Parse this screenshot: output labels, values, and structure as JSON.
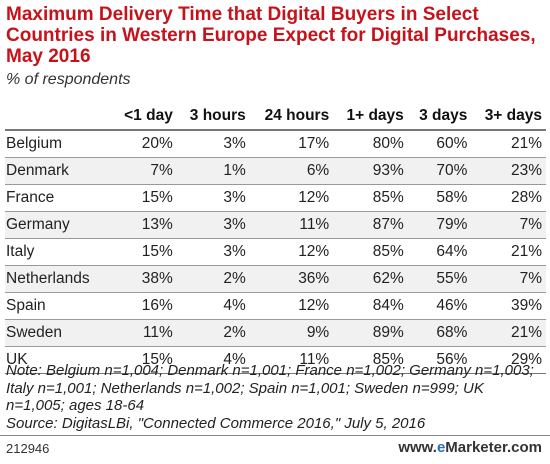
{
  "chart_data": {
    "type": "table",
    "title": "Maximum Delivery Time that Digital Buyers in Select Countries in Western Europe Expect for Digital Purchases, May 2016",
    "subtitle": "% of respondents",
    "columns": [
      "",
      "<1 day",
      "3 hours",
      "24 hours",
      "1+ days",
      "3 days",
      "3+ days"
    ],
    "rows": [
      {
        "label": "Belgium",
        "values": [
          "20%",
          "3%",
          "17%",
          "80%",
          "60%",
          "21%"
        ]
      },
      {
        "label": "Denmark",
        "values": [
          "7%",
          "1%",
          "6%",
          "93%",
          "70%",
          "23%"
        ]
      },
      {
        "label": "France",
        "values": [
          "15%",
          "3%",
          "12%",
          "85%",
          "58%",
          "28%"
        ]
      },
      {
        "label": "Germany",
        "values": [
          "13%",
          "3%",
          "11%",
          "87%",
          "79%",
          "7%"
        ]
      },
      {
        "label": "Italy",
        "values": [
          "15%",
          "3%",
          "12%",
          "85%",
          "64%",
          "21%"
        ]
      },
      {
        "label": "Netherlands",
        "values": [
          "38%",
          "2%",
          "36%",
          "62%",
          "55%",
          "7%"
        ]
      },
      {
        "label": "Spain",
        "values": [
          "16%",
          "4%",
          "12%",
          "84%",
          "46%",
          "39%"
        ]
      },
      {
        "label": "Sweden",
        "values": [
          "11%",
          "2%",
          "9%",
          "89%",
          "68%",
          "21%"
        ]
      },
      {
        "label": "UK",
        "values": [
          "15%",
          "4%",
          "11%",
          "85%",
          "56%",
          "29%"
        ]
      }
    ],
    "note": "Note: Belgium n=1,004; Denmark n=1,001; France n=1,002; Germany n=1,003; Italy n=1,001; Netherlands n=1,002; Spain n=1,001; Sweden n=999; UK n=1,005; ages 18-64",
    "source": "Source: DigitasLBi, \"Connected Commerce 2016,\" July 5, 2016"
  },
  "footer": {
    "chart_id": "212946",
    "brand_prefix": "www.",
    "brand_e": "e",
    "brand_rest": "Marketer.com"
  },
  "colors": {
    "title": "#c6131b",
    "stripe": "#f1f1f1",
    "brand_accent": "#2a6fb8"
  }
}
